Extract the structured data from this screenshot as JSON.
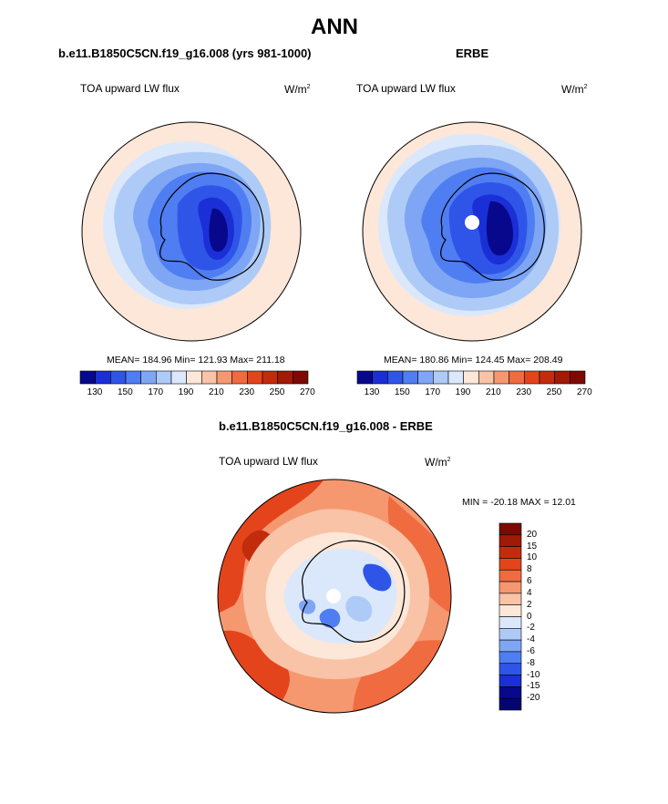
{
  "page": {
    "title": "ANN"
  },
  "panels": [
    {
      "title": "b.e11.B1850C5CN.f19_g16.008 (yrs 981-1000)",
      "variable": "TOA upward LW flux",
      "units": "W/m",
      "units_sup": "2",
      "stats": "MEAN= 184.96  Min= 121.93  Max= 211.18"
    },
    {
      "title": "ERBE",
      "variable": "TOA upward LW flux",
      "units": "W/m",
      "units_sup": "2",
      "stats": "MEAN= 180.86  Min= 124.45  Max= 208.49"
    },
    {
      "title": "b.e11.B1850C5CN.f19_g16.008 - ERBE",
      "variable": "TOA upward LW flux",
      "units": "W/m",
      "units_sup": "2",
      "stats": "MIN = -20.18 MAX =  12.01"
    }
  ],
  "colorbar_fields": {
    "tick_labels": [
      "130",
      "150",
      "170",
      "190",
      "210",
      "230",
      "250",
      "270"
    ],
    "colors": [
      "#08088c",
      "#1a2fd6",
      "#2f55e8",
      "#4f7ef2",
      "#7ea6f5",
      "#aecbf7",
      "#dbe8fb",
      "#fde7d8",
      "#f8c3a6",
      "#f59870",
      "#f06b3f",
      "#e4441b",
      "#c22c0c",
      "#a01a05",
      "#7c0a02"
    ]
  },
  "colorbar_diff": {
    "labels": [
      "20",
      "15",
      "10",
      "8",
      "6",
      "4",
      "2",
      "0",
      "-2",
      "-4",
      "-6",
      "-8",
      "-10",
      "-15",
      "-20"
    ],
    "colors": [
      "#7c0a02",
      "#a01a05",
      "#c22c0c",
      "#e4441b",
      "#f06b3f",
      "#f59870",
      "#f8c3a6",
      "#fde7d8",
      "#dbe8fb",
      "#aecbf7",
      "#7ea6f5",
      "#4f7ef2",
      "#2f55e8",
      "#1a2fd6",
      "#08088c",
      "#050570"
    ]
  }
}
